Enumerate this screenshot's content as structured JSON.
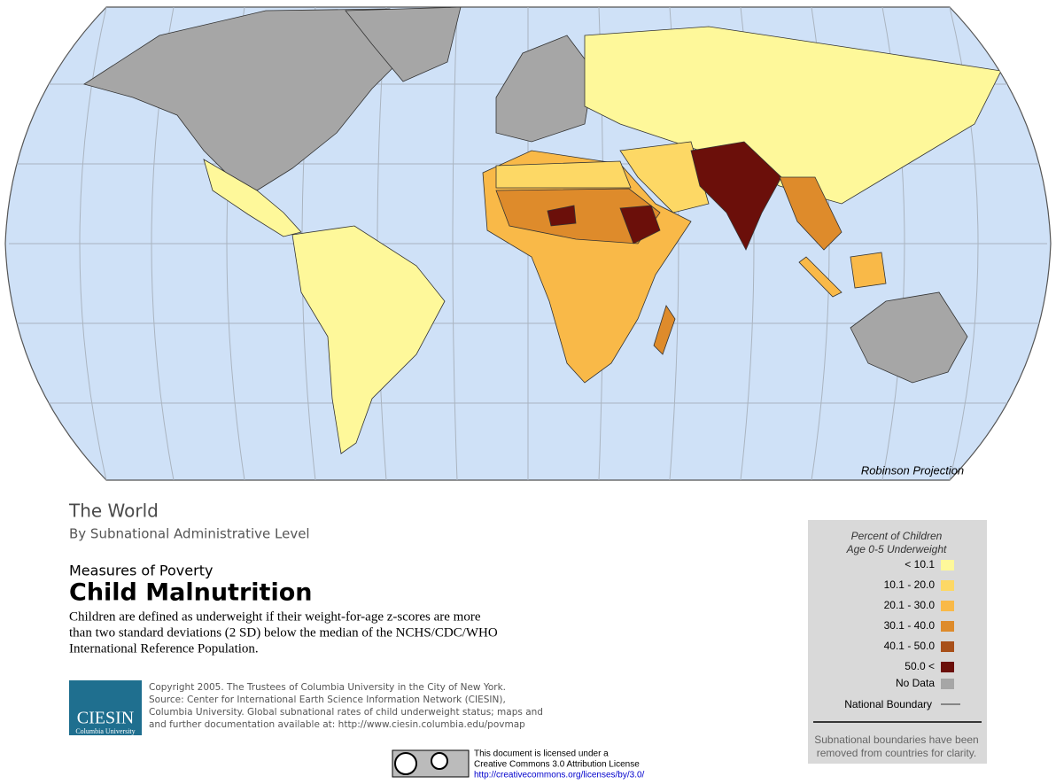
{
  "map": {
    "projection_label": "Robinson Projection"
  },
  "title": {
    "region": "The World",
    "subtitle": "By Subnational Administrative Level",
    "series": "Measures of Poverty",
    "topic": "Child Malnutrition",
    "description": [
      "Children are defined as underweight if their weight-for-age z-scores are more",
      "than two standard deviations (2 SD) below the median of the NCHS/CDC/WHO",
      "International Reference Population."
    ]
  },
  "legend": {
    "title": [
      "Percent of Children",
      "Age 0-5 Underweight"
    ],
    "classes": [
      {
        "label": "< 10.1",
        "color": "#fef89a"
      },
      {
        "label": "10.1 - 20.0",
        "color": "#fdd865"
      },
      {
        "label": "20.1 - 30.0",
        "color": "#f9b948"
      },
      {
        "label": "30.1 - 40.0",
        "color": "#de8b2b"
      },
      {
        "label": "40.1 - 50.0",
        "color": "#a8501a"
      },
      {
        "label": "50.0 <",
        "color": "#6b0f0a"
      }
    ],
    "no_data": {
      "label": "No Data",
      "color": "#a6a6a6"
    },
    "boundary": "National Boundary",
    "note": [
      "Subnational boundaries have been",
      "removed from countries for clarity."
    ]
  },
  "credits": {
    "logo": "CIESIN",
    "logo_sub": "Columbia University",
    "lines": [
      "Copyright 2005. The Trustees of Columbia University in the City of New York.",
      "Source: Center for International Earth Science Information Network (CIESIN),",
      "Columbia University. Global subnational rates of child underweight status; maps and",
      "and further documentation available at: http://www.ciesin.columbia.edu/povmap"
    ]
  },
  "license": {
    "lines": [
      "This document is licensed under a",
      "Creative Commons 3.0 Attribution License"
    ],
    "url": "http://creativecommons.org/licenses/by/3.0/"
  }
}
